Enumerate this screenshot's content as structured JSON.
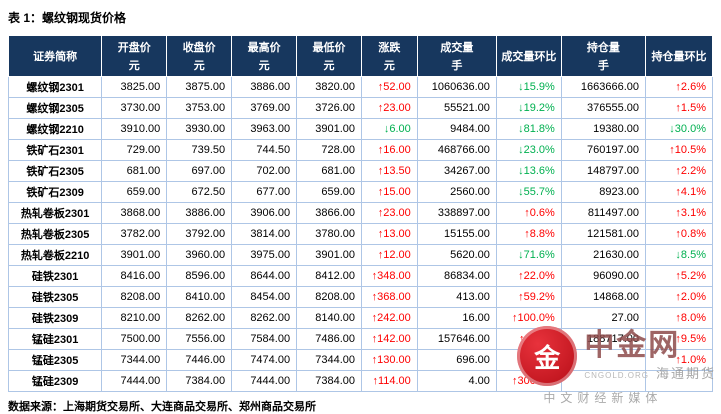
{
  "title": "表 1：螺纹钢现货价格",
  "footer": "数据来源：上海期货交易所、大连商品交易所、郑州商品交易所",
  "colors": {
    "up": "#fe0000",
    "down": "#00b050",
    "header_bg": "#17375e"
  },
  "watermark": {
    "logo_char": "金",
    "brand": "中金网",
    "url": "CNGOLD.ORG",
    "broker": "海通期货",
    "tagline": "中文财经新媒体"
  },
  "table": {
    "headers": [
      {
        "key": "name",
        "label": "证券简称",
        "unit": ""
      },
      {
        "key": "open",
        "label": "开盘价",
        "unit": "元"
      },
      {
        "key": "close",
        "label": "收盘价",
        "unit": "元"
      },
      {
        "key": "high",
        "label": "最高价",
        "unit": "元"
      },
      {
        "key": "low",
        "label": "最低价",
        "unit": "元"
      },
      {
        "key": "change",
        "label": "涨跌",
        "unit": "元"
      },
      {
        "key": "volume",
        "label": "成交量",
        "unit": "手"
      },
      {
        "key": "vol-mom",
        "label": "成交量环比",
        "unit": ""
      },
      {
        "key": "oi",
        "label": "持仓量",
        "unit": "手"
      },
      {
        "key": "oi-mom",
        "label": "持仓量环比",
        "unit": ""
      }
    ],
    "rows": [
      [
        "螺纹钢2301",
        "3825.00",
        "3875.00",
        "3886.00",
        "3820.00",
        "↑52.00",
        "1060636.00",
        "↓15.9%",
        "1663666.00",
        "↑2.6%"
      ],
      [
        "螺纹钢2305",
        "3730.00",
        "3753.00",
        "3769.00",
        "3726.00",
        "↑23.00",
        "55521.00",
        "↓19.2%",
        "376555.00",
        "↑1.5%"
      ],
      [
        "螺纹钢2210",
        "3910.00",
        "3930.00",
        "3963.00",
        "3901.00",
        "↓6.00",
        "9484.00",
        "↓81.8%",
        "19380.00",
        "↓30.0%"
      ],
      [
        "铁矿石2301",
        "729.00",
        "739.50",
        "744.50",
        "728.00",
        "↑16.00",
        "468766.00",
        "↓23.0%",
        "760197.00",
        "↑10.5%"
      ],
      [
        "铁矿石2305",
        "681.00",
        "697.00",
        "702.00",
        "681.00",
        "↑13.50",
        "34267.00",
        "↓13.6%",
        "148797.00",
        "↑2.2%"
      ],
      [
        "铁矿石2309",
        "659.00",
        "672.50",
        "677.00",
        "659.00",
        "↑15.00",
        "2560.00",
        "↓55.7%",
        "8923.00",
        "↑4.1%"
      ],
      [
        "热轧卷板2301",
        "3868.00",
        "3886.00",
        "3906.00",
        "3866.00",
        "↑23.00",
        "338897.00",
        "↑0.6%",
        "811497.00",
        "↑3.1%"
      ],
      [
        "热轧卷板2305",
        "3782.00",
        "3792.00",
        "3814.00",
        "3780.00",
        "↑13.00",
        "15155.00",
        "↑8.8%",
        "121581.00",
        "↑0.8%"
      ],
      [
        "热轧卷板2210",
        "3901.00",
        "3960.00",
        "3975.00",
        "3901.00",
        "↑12.00",
        "5620.00",
        "↓71.6%",
        "21630.00",
        "↓8.5%"
      ],
      [
        "硅铁2301",
        "8416.00",
        "8596.00",
        "8644.00",
        "8412.00",
        "↑348.00",
        "86834.00",
        "↑22.0%",
        "96090.00",
        "↑5.2%"
      ],
      [
        "硅铁2305",
        "8208.00",
        "8410.00",
        "8454.00",
        "8208.00",
        "↑368.00",
        "413.00",
        "↑59.2%",
        "14868.00",
        "↑2.0%"
      ],
      [
        "硅铁2309",
        "8210.00",
        "8262.00",
        "8262.00",
        "8140.00",
        "↑242.00",
        "16.00",
        "↑100.0%",
        "27.00",
        "↑8.0%"
      ],
      [
        "锰硅2301",
        "7500.00",
        "7556.00",
        "7584.00",
        "7486.00",
        "↑142.00",
        "157646.00",
        "↑11.0%",
        "188717.00",
        "↑9.5%"
      ],
      [
        "锰硅2305",
        "7344.00",
        "7446.00",
        "7474.00",
        "7344.00",
        "↑130.00",
        "696.00",
        "↑84.6%",
        "",
        "↑1.0%"
      ],
      [
        "锰硅2309",
        "7444.00",
        "7384.00",
        "7444.00",
        "7384.00",
        "↑114.00",
        "4.00",
        "↑300.0%",
        "",
        ""
      ]
    ]
  }
}
